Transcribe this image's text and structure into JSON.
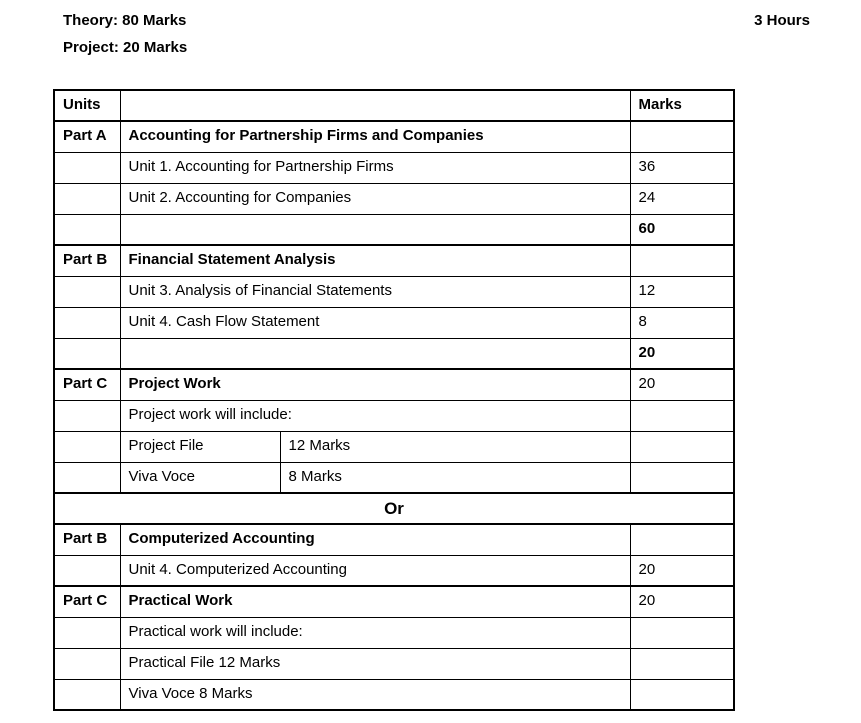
{
  "page": {
    "theory_label": "Theory: 80 Marks",
    "project_label": "Project: 20 Marks",
    "duration_label": "3 Hours"
  },
  "table": {
    "rows": [
      {
        "type": "normal",
        "heavy_top": false,
        "cells": [
          {
            "text": "Units",
            "bold": true
          },
          {
            "text": "",
            "bold": false
          },
          {
            "text": "Marks",
            "bold": true
          }
        ]
      },
      {
        "type": "normal",
        "heavy_top": true,
        "cells": [
          {
            "text": "Part A",
            "bold": true
          },
          {
            "text": "Accounting for Partnership Firms and Companies",
            "bold": true
          },
          {
            "text": "",
            "bold": false
          }
        ]
      },
      {
        "type": "normal",
        "heavy_top": false,
        "cells": [
          {
            "text": "",
            "bold": false
          },
          {
            "text": "Unit 1. Accounting for Partnership Firms",
            "bold": false
          },
          {
            "text": "36",
            "bold": false
          }
        ]
      },
      {
        "type": "normal",
        "heavy_top": false,
        "cells": [
          {
            "text": "",
            "bold": false
          },
          {
            "text": "Unit 2. Accounting for Companies",
            "bold": false
          },
          {
            "text": "24",
            "bold": false
          }
        ]
      },
      {
        "type": "normal",
        "heavy_top": false,
        "cells": [
          {
            "text": "",
            "bold": false
          },
          {
            "text": "",
            "bold": false
          },
          {
            "text": "60",
            "bold": true
          }
        ]
      },
      {
        "type": "normal",
        "heavy_top": true,
        "cells": [
          {
            "text": "Part B",
            "bold": true
          },
          {
            "text": "Financial Statement Analysis",
            "bold": true
          },
          {
            "text": "",
            "bold": false
          }
        ]
      },
      {
        "type": "normal",
        "heavy_top": false,
        "cells": [
          {
            "text": "",
            "bold": false
          },
          {
            "text": "Unit 3. Analysis of Financial Statements",
            "bold": false
          },
          {
            "text": "12",
            "bold": false
          }
        ]
      },
      {
        "type": "normal",
        "heavy_top": false,
        "cells": [
          {
            "text": "",
            "bold": false
          },
          {
            "text": "Unit 4. Cash Flow Statement",
            "bold": false
          },
          {
            "text": "8",
            "bold": false
          }
        ]
      },
      {
        "type": "normal",
        "heavy_top": false,
        "cells": [
          {
            "text": "",
            "bold": false
          },
          {
            "text": "",
            "bold": false
          },
          {
            "text": "20",
            "bold": true
          }
        ]
      },
      {
        "type": "normal",
        "heavy_top": true,
        "cells": [
          {
            "text": "Part C",
            "bold": true
          },
          {
            "text": "Project Work",
            "bold": true
          },
          {
            "text": "20",
            "bold": false
          }
        ]
      },
      {
        "type": "normal",
        "heavy_top": false,
        "cells": [
          {
            "text": "",
            "bold": false
          },
          {
            "text": "Project work will include:",
            "bold": false
          },
          {
            "text": "",
            "bold": false
          }
        ]
      },
      {
        "type": "split",
        "heavy_top": false,
        "cells": [
          {
            "text": "",
            "bold": false
          },
          {
            "text": "Project File",
            "bold": false
          },
          {
            "text": "12 Marks",
            "bold": false
          },
          {
            "text": "",
            "bold": false
          }
        ]
      },
      {
        "type": "split",
        "heavy_top": false,
        "cells": [
          {
            "text": "",
            "bold": false
          },
          {
            "text": "Viva Voce",
            "bold": false
          },
          {
            "text": "8 Marks",
            "bold": false
          },
          {
            "text": "",
            "bold": false
          }
        ]
      },
      {
        "type": "or",
        "heavy_top": true,
        "cells": [
          {
            "text": "Or",
            "bold": true
          }
        ]
      },
      {
        "type": "normal",
        "heavy_top": true,
        "cells": [
          {
            "text": "Part B",
            "bold": true
          },
          {
            "text": "Computerized Accounting",
            "bold": true
          },
          {
            "text": "",
            "bold": false
          }
        ]
      },
      {
        "type": "normal",
        "heavy_top": false,
        "cells": [
          {
            "text": "",
            "bold": false
          },
          {
            "text": "Unit 4. Computerized Accounting",
            "bold": false
          },
          {
            "text": "20",
            "bold": false
          }
        ]
      },
      {
        "type": "normal",
        "heavy_top": true,
        "cells": [
          {
            "text": "Part C",
            "bold": true
          },
          {
            "text": "Practical Work",
            "bold": true
          },
          {
            "text": "20",
            "bold": false
          }
        ]
      },
      {
        "type": "normal",
        "heavy_top": false,
        "cells": [
          {
            "text": "",
            "bold": false
          },
          {
            "text": "Practical work will include:",
            "bold": false
          },
          {
            "text": "",
            "bold": false
          }
        ]
      },
      {
        "type": "normal",
        "heavy_top": false,
        "cells": [
          {
            "text": "",
            "bold": false
          },
          {
            "text": "Practical File 12 Marks",
            "bold": false
          },
          {
            "text": "",
            "bold": false
          }
        ]
      },
      {
        "type": "normal",
        "heavy_top": false,
        "cells": [
          {
            "text": "",
            "bold": false
          },
          {
            "text": "Viva Voce 8 Marks",
            "bold": false
          },
          {
            "text": "",
            "bold": false
          }
        ]
      }
    ]
  }
}
